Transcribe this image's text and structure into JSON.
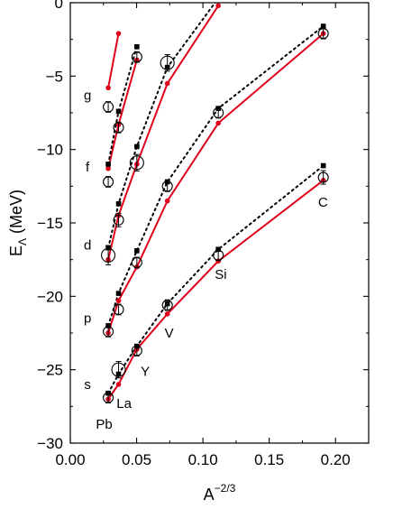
{
  "chart_data": {
    "type": "line",
    "title": "",
    "xlabel": {
      "base": "A",
      "exponent": "−2/3"
    },
    "ylabel": {
      "base": "E",
      "subscript": "Λ",
      "unit": "(MeV)"
    },
    "xlim": [
      0.0,
      0.225
    ],
    "ylim": [
      -30,
      0
    ],
    "xticks": [
      0.0,
      0.05,
      0.1,
      0.15,
      0.2
    ],
    "xtick_labels": [
      "0.00",
      "0.05",
      "0.10",
      "0.15",
      "0.20"
    ],
    "yticks": [
      -30,
      -25,
      -20,
      -15,
      -10,
      -5,
      0
    ],
    "ytick_labels": [
      "−30",
      "−25",
      "−20",
      "−15",
      "−10",
      "−5",
      "0"
    ],
    "grid": false,
    "colors": {
      "solid_line": "#e0001a",
      "dotted_line": "#000000",
      "data_marker": "#000000"
    },
    "series": [
      {
        "style": "red-solid-line-with-dots",
        "shell": "s",
        "x": [
          0.0286,
          0.0364,
          0.0502,
          0.0732,
          0.1116,
          0.1908
        ],
        "y": [
          -27.0,
          -26.0,
          -23.6,
          -21.2,
          -17.6,
          -12.1
        ]
      },
      {
        "style": "red-solid-line-with-dots",
        "shell": "p",
        "x": [
          0.0286,
          0.0364,
          0.0502,
          0.0732,
          0.1116,
          0.1908
        ],
        "y": [
          -22.5,
          -20.3,
          -18.0,
          -13.5,
          -8.2,
          -2.1
        ]
      },
      {
        "style": "red-solid-line-with-dots",
        "shell": "d",
        "x": [
          0.0286,
          0.0364,
          0.0502,
          0.0732,
          0.1116
        ],
        "y": [
          -17.5,
          -14.5,
          -11.0,
          -5.5,
          -0.2
        ]
      },
      {
        "style": "red-solid-line-with-dots",
        "shell": "f",
        "x": [
          0.0286,
          0.0364,
          0.0502
        ],
        "y": [
          -11.3,
          -8.3,
          -3.9
        ]
      },
      {
        "style": "red-solid-line-with-dots",
        "shell": "g",
        "x": [
          0.0286,
          0.0364
        ],
        "y": [
          -5.8,
          -2.1
        ]
      },
      {
        "style": "black-dotted-line-with-squares",
        "shell": "s",
        "x": [
          0.0286,
          0.0364,
          0.0502,
          0.0732,
          0.1116,
          0.1908
        ],
        "y": [
          -26.6,
          -25.3,
          -23.4,
          -20.5,
          -16.8,
          -11.1
        ]
      },
      {
        "style": "black-dotted-line-with-squares",
        "shell": "p",
        "x": [
          0.0286,
          0.0364,
          0.0502,
          0.0732,
          0.1116,
          0.1908
        ],
        "y": [
          -22.0,
          -19.8,
          -16.9,
          -12.2,
          -7.2,
          -1.6
        ]
      },
      {
        "style": "black-dotted-line-with-squares",
        "shell": "d",
        "x": [
          0.0286,
          0.0364,
          0.0502,
          0.0732,
          0.1116
        ],
        "y": [
          -16.7,
          -13.7,
          -9.8,
          -4.4,
          0.3
        ]
      },
      {
        "style": "black-dotted-line-with-squares",
        "shell": "f",
        "x": [
          0.0286,
          0.0364,
          0.0502
        ],
        "y": [
          -11.0,
          -7.4,
          -3.0
        ]
      }
    ],
    "experimental_points": [
      {
        "x": 0.0286,
        "y": -26.9,
        "err": 0.3
      },
      {
        "x": 0.0286,
        "y": -22.4,
        "err": 0.3
      },
      {
        "x": 0.0286,
        "y": -17.2,
        "err": 0.6
      },
      {
        "x": 0.0286,
        "y": -12.2,
        "err": 0.3
      },
      {
        "x": 0.0286,
        "y": -7.1,
        "err": 0.3
      },
      {
        "x": 0.0364,
        "y": -25.0,
        "err": 0.5
      },
      {
        "x": 0.0364,
        "y": -20.9,
        "err": 0.3
      },
      {
        "x": 0.0364,
        "y": -14.8,
        "err": 0.4
      },
      {
        "x": 0.0364,
        "y": -8.5,
        "err": 0.3
      },
      {
        "x": 0.0502,
        "y": -23.7,
        "err": 0.3
      },
      {
        "x": 0.0502,
        "y": -17.7,
        "err": 0.3
      },
      {
        "x": 0.0502,
        "y": -10.9,
        "err": 0.5
      },
      {
        "x": 0.0502,
        "y": -3.7,
        "err": 0.3
      },
      {
        "x": 0.0732,
        "y": -20.6,
        "err": 0.3
      },
      {
        "x": 0.0732,
        "y": -12.5,
        "err": 0.3
      },
      {
        "x": 0.0732,
        "y": -4.1,
        "err": 0.5
      },
      {
        "x": 0.1116,
        "y": -17.2,
        "err": 0.3
      },
      {
        "x": 0.1116,
        "y": -7.5,
        "err": 0.3
      },
      {
        "x": 0.1908,
        "y": -11.9,
        "err": 0.4
      },
      {
        "x": 0.1908,
        "y": -2.1,
        "err": 0.3
      }
    ],
    "shell_labels": [
      {
        "text": "s",
        "x": 0.013,
        "y": -26.0
      },
      {
        "text": "p",
        "x": 0.013,
        "y": -21.5
      },
      {
        "text": "d",
        "x": 0.013,
        "y": -16.5
      },
      {
        "text": "f",
        "x": 0.013,
        "y": -11.2
      },
      {
        "text": "g",
        "x": 0.013,
        "y": -6.3
      }
    ],
    "nucleus_labels": [
      {
        "text": "Pb",
        "x": 0.0255,
        "y": -28.7
      },
      {
        "text": "La",
        "x": 0.0405,
        "y": -27.3
      },
      {
        "text": "Y",
        "x": 0.0565,
        "y": -25.1
      },
      {
        "text": "V",
        "x": 0.0745,
        "y": -22.5
      },
      {
        "text": "Si",
        "x": 0.1135,
        "y": -18.5
      },
      {
        "text": "C",
        "x": 0.1905,
        "y": -13.6
      }
    ]
  }
}
